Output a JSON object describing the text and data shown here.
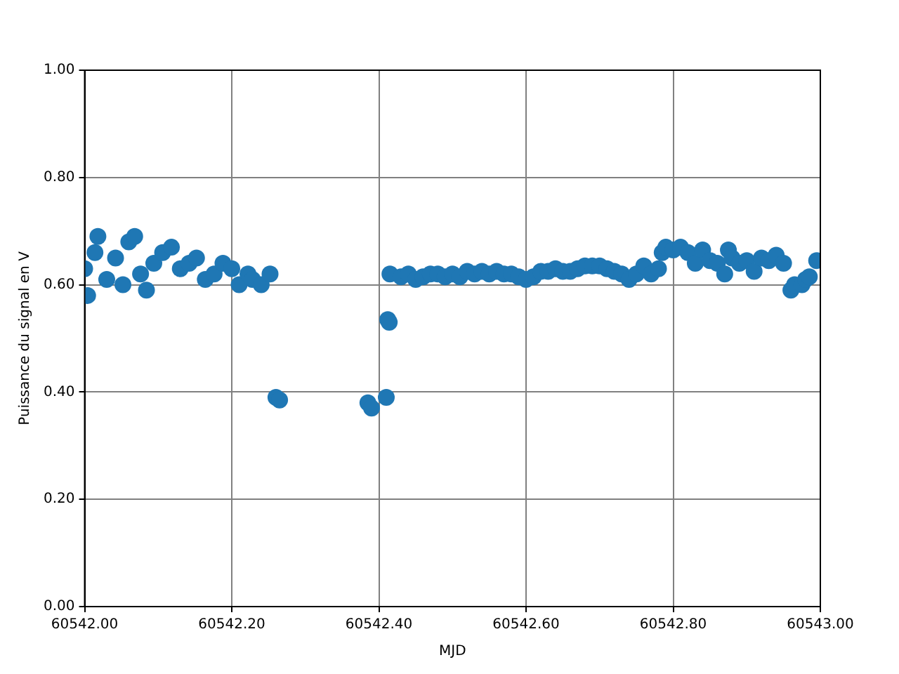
{
  "chart_data": {
    "type": "scatter",
    "xlabel": "MJD",
    "ylabel": "Puissance du signal en V",
    "xlim": [
      60542.0,
      60543.0
    ],
    "xticks": [
      {
        "value": 60542.0,
        "label": "60542.00"
      },
      {
        "value": 60542.2,
        "label": "60542.20"
      },
      {
        "value": 60542.4,
        "label": "60542.40"
      },
      {
        "value": 60542.6,
        "label": "60542.60"
      },
      {
        "value": 60542.8,
        "label": "60542.80"
      },
      {
        "value": 60543.0,
        "label": "60543.00"
      }
    ],
    "ylim": [
      0,
      1
    ],
    "yticks": [
      {
        "value": 0,
        "label": "0.00"
      },
      {
        "value": 0.2,
        "label": "0.20"
      },
      {
        "value": 0.4,
        "label": "0.40"
      },
      {
        "value": 0.6,
        "label": "0.60"
      },
      {
        "value": 0.8,
        "label": "0.80"
      },
      {
        "value": 1,
        "label": "1.00"
      }
    ],
    "grid": true,
    "marker": "circle",
    "legend": false,
    "series": [
      {
        "color": "#1f77b4",
        "x": [
          60542.0,
          60542.004,
          60542.014,
          60542.018,
          60542.03,
          60542.042,
          60542.052,
          60542.06,
          60542.068,
          60542.076,
          60542.084,
          60542.094,
          60542.106,
          60542.118,
          60542.13,
          60542.142,
          60542.152,
          60542.164,
          60542.176,
          60542.188,
          60542.2,
          60542.21,
          60542.222,
          60542.228,
          60542.24,
          60542.252,
          60542.26,
          60542.265,
          60542.385,
          60542.39,
          60542.41,
          60542.412,
          60542.414,
          60542.415,
          60542.43,
          60542.44,
          60542.45,
          60542.46,
          60542.47,
          60542.48,
          60542.49,
          60542.5,
          60542.51,
          60542.52,
          60542.53,
          60542.54,
          60542.55,
          60542.56,
          60542.57,
          60542.58,
          60542.59,
          60542.6,
          60542.61,
          60542.62,
          60542.63,
          60542.64,
          60542.65,
          60542.66,
          60542.67,
          60542.68,
          60542.69,
          60542.7,
          60542.71,
          60542.72,
          60542.73,
          60542.74,
          60542.75,
          60542.76,
          60542.77,
          60542.78,
          60542.785,
          60542.79,
          60542.8,
          60542.81,
          60542.82,
          60542.83,
          60542.84,
          60542.85,
          60542.86,
          60542.87,
          60542.875,
          60542.88,
          60542.89,
          60542.9,
          60542.91,
          60542.92,
          60542.93,
          60542.94,
          60542.95,
          60542.96,
          60542.965,
          60542.975,
          60542.98,
          60542.985,
          60542.995
        ],
        "values": [
          0.63,
          0.58,
          0.66,
          0.69,
          0.61,
          0.65,
          0.6,
          0.68,
          0.69,
          0.62,
          0.59,
          0.64,
          0.66,
          0.67,
          0.63,
          0.64,
          0.65,
          0.61,
          0.62,
          0.64,
          0.63,
          0.6,
          0.62,
          0.61,
          0.6,
          0.62,
          0.39,
          0.385,
          0.38,
          0.37,
          0.39,
          0.535,
          0.53,
          0.62,
          0.615,
          0.62,
          0.61,
          0.615,
          0.62,
          0.62,
          0.615,
          0.62,
          0.615,
          0.625,
          0.62,
          0.625,
          0.62,
          0.625,
          0.62,
          0.62,
          0.615,
          0.61,
          0.615,
          0.625,
          0.625,
          0.63,
          0.625,
          0.625,
          0.63,
          0.635,
          0.635,
          0.635,
          0.63,
          0.625,
          0.62,
          0.61,
          0.62,
          0.635,
          0.62,
          0.63,
          0.66,
          0.67,
          0.665,
          0.67,
          0.66,
          0.64,
          0.665,
          0.645,
          0.64,
          0.62,
          0.665,
          0.65,
          0.64,
          0.645,
          0.625,
          0.65,
          0.645,
          0.655,
          0.64,
          0.59,
          0.6,
          0.6,
          0.61,
          0.615,
          0.645
        ]
      }
    ]
  }
}
